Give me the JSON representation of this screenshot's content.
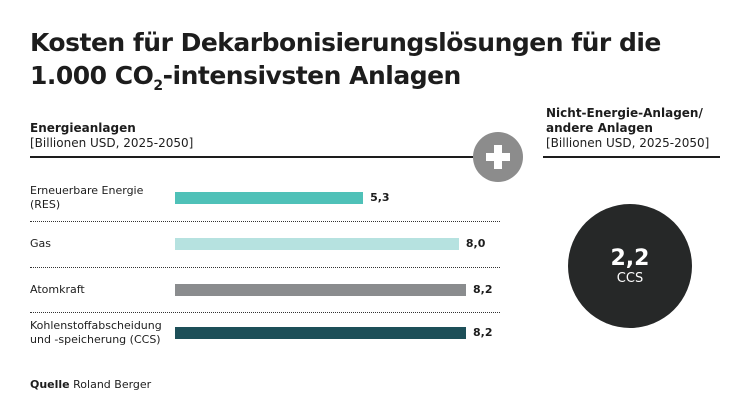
{
  "title_line1": "Kosten für Dekarbonisierungslösungen für die",
  "title_line2_pre": "1.000 CO",
  "title_sub": "2",
  "title_line2_post": "-intensivsten Anlagen",
  "left_header": {
    "title": "Energieanlagen",
    "unit": "[Billionen USD, 2025-2050]"
  },
  "right_header": {
    "title": "Nicht-Energie-Anlagen/ andere Anlagen",
    "unit": "[Billionen USD, 2025-2050]"
  },
  "plus_icon": "plus-icon",
  "chart_data": {
    "type": "bar",
    "orientation": "horizontal",
    "categories": [
      "Erneuerbare Energie (RES)",
      "Gas",
      "Atomkraft",
      "Kohlenstoffabscheidung und -speicherung (CCS)"
    ],
    "values": [
      5.3,
      8.0,
      8.2,
      8.2
    ],
    "value_labels": [
      "5,3",
      "8,0",
      "8,2",
      "8,2"
    ],
    "colors": [
      "#4fc1b8",
      "#b6e2e0",
      "#8a8c8e",
      "#1d4f58"
    ],
    "xlim": [
      0,
      8.2
    ]
  },
  "right_value": {
    "value": "2,2",
    "label": "CCS",
    "color": "#262828"
  },
  "source": {
    "label": "Quelle",
    "text": "Roland Berger"
  }
}
